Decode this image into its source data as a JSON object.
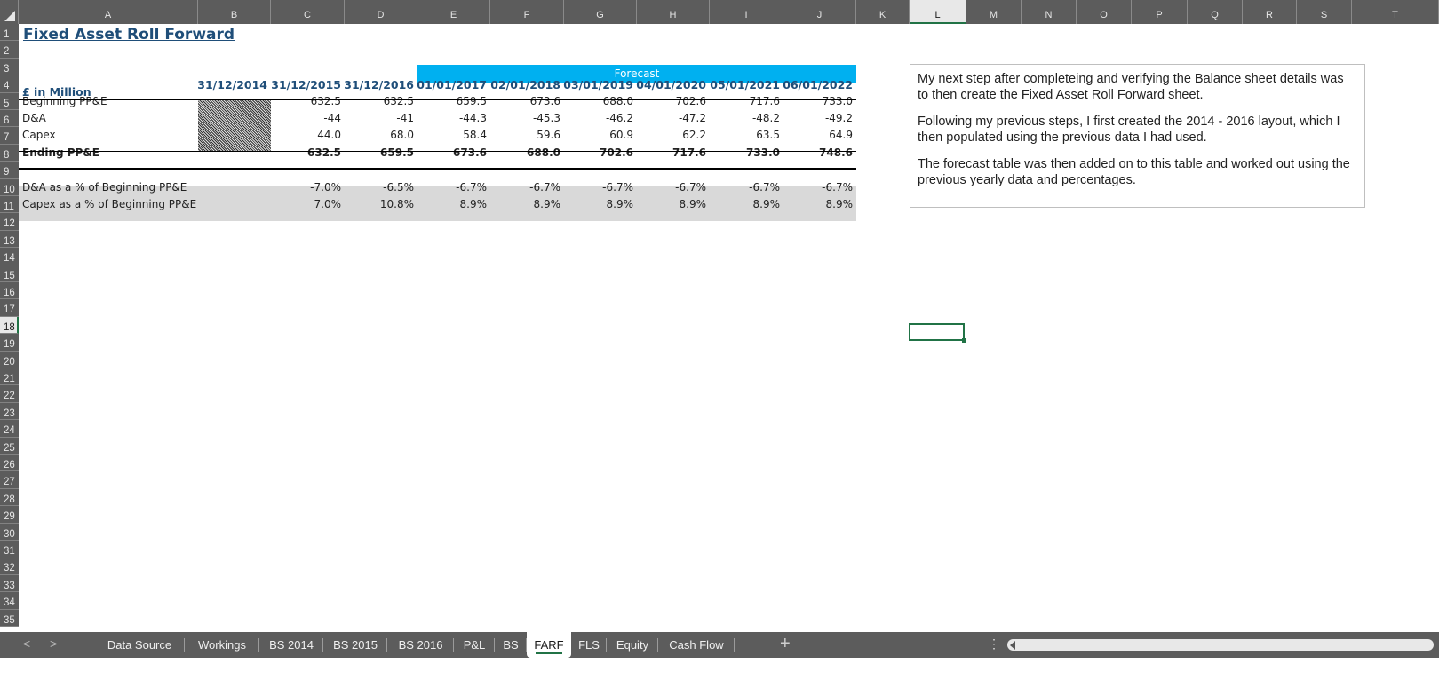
{
  "columns": [
    "A",
    "B",
    "C",
    "D",
    "E",
    "F",
    "G",
    "H",
    "I",
    "J",
    "K",
    "L",
    "M",
    "N",
    "O",
    "P",
    "Q",
    "R",
    "S",
    "T"
  ],
  "selected_column": "L",
  "rows": [
    "1",
    "2",
    "3",
    "4",
    "5",
    "6",
    "7",
    "8",
    "9",
    "10",
    "11",
    "12",
    "13",
    "14",
    "15",
    "16",
    "17",
    "18",
    "19",
    "20",
    "21",
    "22",
    "23",
    "24",
    "25",
    "26",
    "27",
    "28",
    "29",
    "30",
    "31",
    "32",
    "33",
    "34",
    "35"
  ],
  "selected_row": "18",
  "sheet": {
    "title": "Fixed Asset Roll Forward",
    "forecast_label": "Forecast",
    "unit_label": "£ in Million",
    "dates": [
      "31/12/2014",
      "31/12/2015",
      "31/12/2016",
      "01/01/2017",
      "02/01/2018",
      "03/01/2019",
      "04/01/2020",
      "05/01/2021",
      "06/01/2022"
    ],
    "table_rows": [
      {
        "label": "Beginning PP&E",
        "values": [
          "",
          "632.5",
          "632.5",
          "659.5",
          "673.6",
          "688.0",
          "702.6",
          "717.6",
          "733.0"
        ]
      },
      {
        "label": "D&A",
        "values": [
          "",
          "-44",
          "-41",
          "-44.3",
          "-45.3",
          "-46.2",
          "-47.2",
          "-48.2",
          "-49.2"
        ]
      },
      {
        "label": "Capex",
        "values": [
          "",
          "44.0",
          "68.0",
          "58.4",
          "59.6",
          "60.9",
          "62.2",
          "63.5",
          "64.9"
        ]
      },
      {
        "label": "Ending PP&E",
        "values": [
          "",
          "632.5",
          "659.5",
          "673.6",
          "688.0",
          "702.6",
          "717.6",
          "733.0",
          "748.6"
        ]
      }
    ],
    "pct_rows": [
      {
        "label": "D&A as a % of Beginning PP&E",
        "values": [
          "-7.0%",
          "-6.5%",
          "-6.7%",
          "-6.7%",
          "-6.7%",
          "-6.7%",
          "-6.7%",
          "-6.7%"
        ]
      },
      {
        "label": "Capex as a % of Beginning PP&E",
        "values": [
          "7.0%",
          "10.8%",
          "8.9%",
          "8.9%",
          "8.9%",
          "8.9%",
          "8.9%",
          "8.9%"
        ]
      }
    ]
  },
  "note": {
    "paragraphs": [
      "My next step after completeing and verifying the Balance sheet details was to then create the Fixed Asset Roll Forward sheet.",
      "Following my previous steps, I first created the 2014 - 2016 layout, which I then populated using the previous data I had used.",
      "The forecast table was then added on to this table and worked out using the previous yearly data and percentages."
    ]
  },
  "tabs": [
    {
      "label": "Data Source"
    },
    {
      "label": "Workings"
    },
    {
      "label": "BS 2014"
    },
    {
      "label": "BS 2015"
    },
    {
      "label": "BS 2016"
    },
    {
      "label": "P&L"
    },
    {
      "label": "BS"
    },
    {
      "label": "FARF",
      "active": true
    },
    {
      "label": "FLS"
    },
    {
      "label": "Equity"
    },
    {
      "label": "Cash Flow"
    }
  ],
  "tabbar": {
    "prev": "<",
    "next": ">",
    "add": "+",
    "more": "⋮"
  }
}
